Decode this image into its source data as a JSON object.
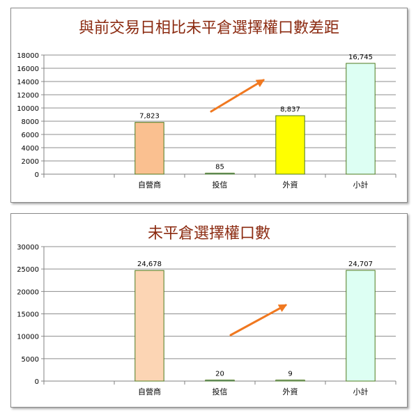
{
  "charts": [
    {
      "title": "與前交易日相比未平倉選擇權口數差距",
      "colors": [
        "#fac090",
        "#8db3e2",
        "#ffff00",
        "#ddfff3"
      ]
    },
    {
      "title": "未平倉選擇權口數",
      "colors": [
        "#fcd5b4",
        "#8db3e2",
        "#b9cde5",
        "#ddfff3"
      ]
    }
  ],
  "chart_data": [
    {
      "type": "bar",
      "title": "與前交易日相比未平倉選擇權口數差距",
      "categories": [
        "",
        "自營商",
        "投信",
        "外資",
        "小計"
      ],
      "values": [
        null,
        7823,
        85,
        8837,
        16745
      ],
      "data_labels": [
        "",
        "7,823",
        "85",
        "8,837",
        "16,745"
      ],
      "ylim": [
        0,
        18000
      ],
      "y_ticks": [
        "0",
        "2000",
        "4000",
        "6000",
        "8000",
        "10000",
        "12000",
        "14000",
        "16000",
        "18000"
      ],
      "grid": true,
      "legend": "none",
      "annotation": "orange arrow pointing up-right"
    },
    {
      "type": "bar",
      "title": "未平倉選擇權口數",
      "categories": [
        "",
        "自營商",
        "投信",
        "外資",
        "小計"
      ],
      "values": [
        null,
        24678,
        20,
        9,
        24707
      ],
      "data_labels": [
        "",
        "24,678",
        "20",
        "9",
        "24,707"
      ],
      "ylim": [
        0,
        30000
      ],
      "y_ticks": [
        "0",
        "5000",
        "10000",
        "15000",
        "20000",
        "25000",
        "30000"
      ],
      "grid": true,
      "legend": "none",
      "annotation": "orange arrow pointing up-right"
    }
  ]
}
